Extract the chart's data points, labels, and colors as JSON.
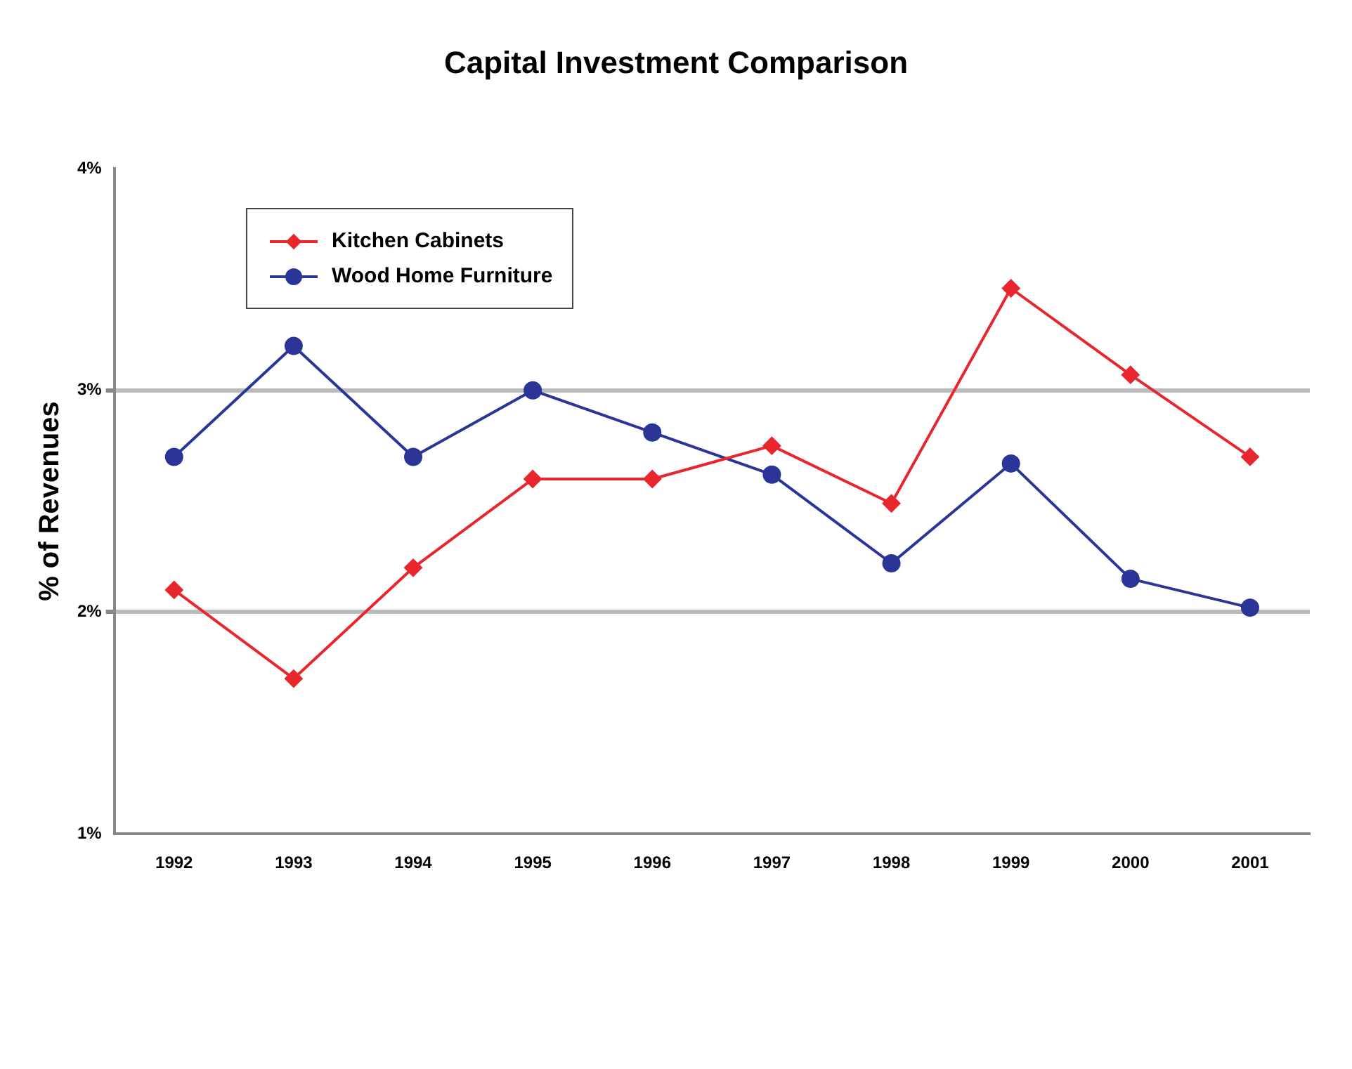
{
  "chart_data": {
    "type": "line",
    "title": "Capital Investment Comparison",
    "ylabel": "% of Revenues",
    "categories": [
      "1992",
      "1993",
      "1994",
      "1995",
      "1996",
      "1997",
      "1998",
      "1999",
      "2000",
      "2001"
    ],
    "series": [
      {
        "name": "Kitchen Cabinets",
        "color": "#e8262e",
        "marker": "diamond",
        "values": [
          2.1,
          1.7,
          2.2,
          2.6,
          2.6,
          2.75,
          2.49,
          3.46,
          3.07,
          2.7
        ]
      },
      {
        "name": "Wood Home Furniture",
        "color": "#2b3597",
        "marker": "circle",
        "values": [
          2.7,
          3.2,
          2.7,
          3.0,
          2.81,
          2.62,
          2.22,
          2.67,
          2.15,
          2.02
        ]
      }
    ],
    "ylim": [
      1,
      4
    ],
    "yticks": [
      {
        "value": 1,
        "label": "1%"
      },
      {
        "value": 2,
        "label": "2%"
      },
      {
        "value": 3,
        "label": "3%"
      },
      {
        "value": 4,
        "label": "4%"
      }
    ],
    "grid": "y",
    "legend": "top left",
    "line_style": "solid"
  }
}
